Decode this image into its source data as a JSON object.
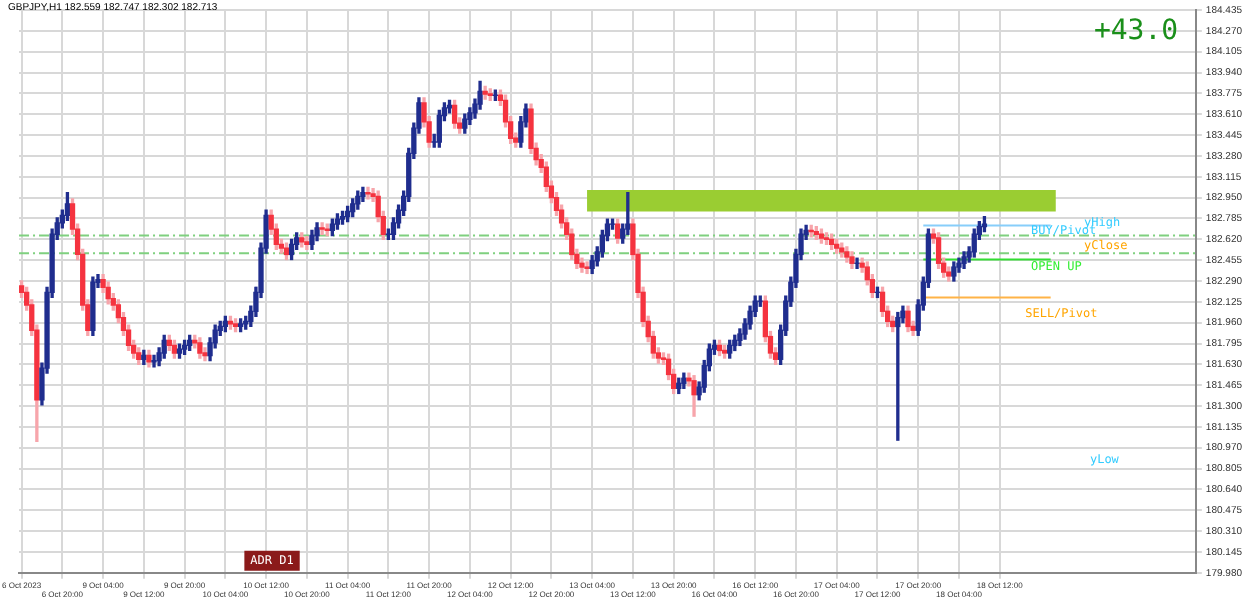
{
  "chart_data": {
    "type": "candlestick",
    "title": "GBPJPY,H1 182.559 182.747 182.302 182.713",
    "categories": [
      "6 Oct 2023",
      null,
      null,
      null,
      null,
      null,
      null,
      null,
      "6 Oct 20:00",
      null,
      null,
      null,
      null,
      null,
      null,
      null,
      "9 Oct 04:00",
      null,
      null,
      null,
      null,
      null,
      null,
      null,
      "9 Oct 12:00",
      null,
      null,
      null,
      null,
      null,
      null,
      null,
      "9 Oct 20:00",
      null,
      null,
      null,
      null,
      null,
      null,
      null,
      "10 Oct 04:00",
      null,
      null,
      null,
      null,
      null,
      null,
      null,
      "10 Oct 12:00",
      null,
      null,
      null,
      null,
      null,
      null,
      null,
      "10 Oct 20:00",
      null,
      null,
      null,
      null,
      null,
      null,
      null,
      "11 Oct 04:00",
      null,
      null,
      null,
      null,
      null,
      null,
      null,
      "11 Oct 12:00",
      null,
      null,
      null,
      null,
      null,
      null,
      null,
      "11 Oct 20:00",
      null,
      null,
      null,
      null,
      null,
      null,
      null,
      "12 Oct 04:00",
      null,
      null,
      null,
      null,
      null,
      null,
      null,
      "12 Oct 12:00",
      null,
      null,
      null,
      null,
      null,
      null,
      null,
      "12 Oct 20:00",
      null,
      null,
      null,
      null,
      null,
      null,
      null,
      "13 Oct 04:00",
      null,
      null,
      null,
      null,
      null,
      null,
      null,
      "13 Oct 12:00",
      null,
      null,
      null,
      null,
      null,
      null,
      null,
      "13 Oct 20:00",
      null,
      null,
      null,
      null,
      null,
      null,
      null,
      "16 Oct 04:00",
      null,
      null,
      null,
      null,
      null,
      null,
      null,
      "16 Oct 12:00",
      null,
      null,
      null,
      null,
      null,
      null,
      null,
      "16 Oct 20:00",
      null,
      null,
      null,
      null,
      null,
      null,
      null,
      "17 Oct 04:00",
      null,
      null,
      null,
      null,
      null,
      null,
      null,
      "17 Oct 12:00",
      null,
      null,
      null,
      null,
      null,
      null,
      null,
      "17 Oct 20:00",
      null,
      null,
      null,
      null,
      null,
      null,
      null,
      "18 Oct 04:00",
      null,
      null,
      null,
      null,
      null,
      null,
      null,
      "18 Oct 12:00",
      null,
      null,
      null,
      null,
      null,
      null,
      null,
      null,
      null,
      null,
      null,
      null,
      null,
      null,
      null,
      null,
      null,
      null,
      null,
      null,
      null,
      null,
      null,
      null,
      null,
      null,
      null,
      null,
      null,
      null,
      null,
      null,
      null,
      null,
      null,
      null,
      null,
      null
    ],
    "ohlc": [
      [
        182.25,
        182.29,
        182.16,
        182.2
      ],
      [
        182.2,
        182.24,
        182.06,
        182.1
      ],
      [
        182.1,
        182.14,
        181.86,
        181.9
      ],
      [
        181.9,
        181.94,
        181.02,
        181.35
      ],
      [
        181.35,
        181.64,
        181.31,
        181.6
      ],
      [
        181.6,
        182.24,
        181.56,
        182.2
      ],
      [
        182.2,
        182.7,
        182.16,
        182.66
      ],
      [
        182.66,
        182.79,
        182.62,
        182.75
      ],
      [
        182.75,
        182.85,
        182.71,
        182.81
      ],
      [
        182.81,
        182.99,
        182.77,
        182.9
      ],
      [
        182.9,
        182.94,
        182.66,
        182.7
      ],
      [
        182.7,
        182.74,
        182.46,
        182.5
      ],
      [
        182.5,
        182.54,
        182.06,
        182.1
      ],
      [
        182.1,
        182.14,
        181.86,
        181.9
      ],
      [
        181.9,
        182.32,
        181.86,
        182.28
      ],
      [
        182.28,
        182.34,
        182.24,
        182.3
      ],
      [
        182.3,
        182.34,
        182.2,
        182.24
      ],
      [
        182.24,
        182.28,
        182.11,
        182.15
      ],
      [
        182.15,
        182.19,
        182.06,
        182.1
      ],
      [
        182.1,
        182.14,
        181.96,
        182.0
      ],
      [
        182.0,
        182.04,
        181.86,
        181.9
      ],
      [
        181.9,
        181.94,
        181.74,
        181.78
      ],
      [
        181.78,
        181.82,
        181.68,
        181.72
      ],
      [
        181.72,
        181.76,
        181.63,
        181.67
      ],
      [
        181.67,
        181.74,
        181.63,
        181.7
      ],
      [
        181.7,
        181.74,
        181.61,
        181.65
      ],
      [
        181.65,
        181.7,
        181.61,
        181.66
      ],
      [
        181.66,
        181.76,
        181.62,
        181.72
      ],
      [
        181.72,
        181.86,
        181.68,
        181.82
      ],
      [
        181.82,
        181.86,
        181.74,
        181.78
      ],
      [
        181.78,
        181.82,
        181.68,
        181.72
      ],
      [
        181.72,
        181.79,
        181.68,
        181.75
      ],
      [
        181.75,
        181.82,
        181.71,
        181.78
      ],
      [
        181.78,
        181.86,
        181.74,
        181.82
      ],
      [
        181.82,
        181.86,
        181.76,
        181.8
      ],
      [
        181.8,
        181.84,
        181.68,
        181.72
      ],
      [
        181.72,
        181.76,
        181.66,
        181.7
      ],
      [
        181.7,
        181.84,
        181.66,
        181.8
      ],
      [
        181.8,
        181.94,
        181.76,
        181.9
      ],
      [
        181.9,
        181.97,
        181.86,
        181.93
      ],
      [
        181.93,
        182.01,
        181.89,
        181.97
      ],
      [
        181.97,
        182.01,
        181.91,
        181.95
      ],
      [
        181.95,
        181.99,
        181.89,
        181.93
      ],
      [
        181.93,
        181.99,
        181.89,
        181.95
      ],
      [
        181.95,
        182.01,
        181.91,
        181.97
      ],
      [
        181.97,
        182.09,
        181.93,
        182.05
      ],
      [
        182.05,
        182.24,
        182.01,
        182.2
      ],
      [
        182.2,
        182.59,
        182.16,
        182.55
      ],
      [
        182.55,
        182.85,
        182.51,
        182.81
      ],
      [
        182.81,
        182.85,
        182.66,
        182.7
      ],
      [
        182.7,
        182.74,
        182.54,
        182.58
      ],
      [
        182.58,
        182.62,
        182.51,
        182.55
      ],
      [
        182.55,
        182.59,
        182.46,
        182.5
      ],
      [
        182.5,
        182.62,
        182.46,
        182.58
      ],
      [
        182.58,
        182.67,
        182.54,
        182.63
      ],
      [
        182.63,
        182.67,
        182.56,
        182.6
      ],
      [
        182.6,
        182.64,
        182.54,
        182.58
      ],
      [
        182.58,
        182.69,
        182.54,
        182.65
      ],
      [
        182.65,
        182.75,
        182.61,
        182.71
      ],
      [
        182.71,
        182.75,
        182.66,
        182.7
      ],
      [
        182.7,
        182.74,
        182.65,
        182.69
      ],
      [
        182.69,
        182.78,
        182.65,
        182.74
      ],
      [
        182.74,
        182.82,
        182.7,
        182.78
      ],
      [
        182.78,
        182.84,
        182.74,
        182.8
      ],
      [
        182.8,
        182.88,
        182.76,
        182.84
      ],
      [
        182.84,
        182.94,
        182.8,
        182.9
      ],
      [
        182.9,
        183.0,
        182.86,
        182.96
      ],
      [
        182.96,
        183.03,
        182.92,
        182.99
      ],
      [
        182.99,
        183.03,
        182.94,
        182.98
      ],
      [
        182.98,
        183.02,
        182.92,
        182.96
      ],
      [
        182.96,
        183.0,
        182.76,
        182.8
      ],
      [
        182.8,
        182.84,
        182.62,
        182.66
      ],
      [
        182.66,
        182.7,
        182.62,
        182.66
      ],
      [
        182.66,
        182.79,
        182.62,
        182.75
      ],
      [
        182.75,
        182.89,
        182.71,
        182.85
      ],
      [
        182.85,
        183.0,
        182.81,
        182.96
      ],
      [
        182.96,
        183.34,
        182.92,
        183.3
      ],
      [
        183.3,
        183.54,
        183.26,
        183.5
      ],
      [
        183.5,
        183.74,
        183.46,
        183.7
      ],
      [
        183.7,
        183.74,
        183.51,
        183.55
      ],
      [
        183.55,
        183.59,
        183.35,
        183.39
      ],
      [
        183.39,
        183.45,
        183.35,
        183.39
      ],
      [
        183.39,
        183.64,
        183.35,
        183.6
      ],
      [
        183.6,
        183.7,
        183.56,
        183.66
      ],
      [
        183.66,
        183.72,
        183.62,
        183.68
      ],
      [
        183.68,
        183.72,
        183.5,
        183.54
      ],
      [
        183.54,
        183.58,
        183.46,
        183.5
      ],
      [
        183.5,
        183.61,
        183.46,
        183.57
      ],
      [
        183.57,
        183.66,
        183.53,
        183.62
      ],
      [
        183.62,
        183.73,
        183.58,
        183.69
      ],
      [
        183.69,
        183.87,
        183.65,
        183.79
      ],
      [
        183.79,
        183.83,
        183.73,
        183.77
      ],
      [
        183.77,
        183.81,
        183.72,
        183.76
      ],
      [
        183.76,
        183.8,
        183.72,
        183.76
      ],
      [
        183.76,
        183.8,
        183.68,
        183.72
      ],
      [
        183.72,
        183.76,
        183.51,
        183.55
      ],
      [
        183.55,
        183.59,
        183.38,
        183.42
      ],
      [
        183.42,
        183.46,
        183.35,
        183.39
      ],
      [
        183.39,
        183.59,
        183.35,
        183.55
      ],
      [
        183.55,
        183.69,
        183.51,
        183.65
      ],
      [
        183.65,
        183.69,
        183.3,
        183.34
      ],
      [
        183.34,
        183.38,
        183.21,
        183.25
      ],
      [
        183.25,
        183.29,
        183.15,
        183.19
      ],
      [
        183.19,
        183.23,
        183.0,
        183.04
      ],
      [
        183.04,
        183.08,
        182.91,
        182.95
      ],
      [
        182.95,
        182.99,
        182.81,
        182.85
      ],
      [
        182.85,
        182.89,
        182.71,
        182.75
      ],
      [
        182.75,
        182.79,
        182.62,
        182.66
      ],
      [
        182.66,
        182.7,
        182.46,
        182.5
      ],
      [
        182.5,
        182.54,
        182.39,
        182.43
      ],
      [
        182.43,
        182.47,
        182.36,
        182.4
      ],
      [
        182.4,
        182.44,
        182.35,
        182.39
      ],
      [
        182.39,
        182.49,
        182.35,
        182.45
      ],
      [
        182.45,
        182.56,
        182.41,
        182.52
      ],
      [
        182.52,
        182.69,
        182.48,
        182.65
      ],
      [
        182.65,
        182.78,
        182.61,
        182.74
      ],
      [
        182.74,
        182.78,
        182.7,
        182.74
      ],
      [
        182.74,
        182.78,
        182.59,
        182.63
      ],
      [
        182.63,
        182.74,
        182.59,
        182.7
      ],
      [
        182.7,
        182.99,
        182.66,
        182.74
      ],
      [
        182.74,
        182.78,
        182.46,
        182.5
      ],
      [
        182.5,
        182.54,
        182.16,
        182.2
      ],
      [
        182.2,
        182.24,
        181.93,
        181.97
      ],
      [
        181.97,
        182.01,
        181.81,
        181.85
      ],
      [
        181.85,
        181.89,
        181.68,
        181.72
      ],
      [
        181.72,
        181.76,
        181.64,
        181.68
      ],
      [
        181.68,
        181.72,
        181.63,
        181.67
      ],
      [
        181.67,
        181.71,
        181.51,
        181.55
      ],
      [
        181.55,
        181.59,
        181.4,
        181.44
      ],
      [
        181.44,
        181.52,
        181.4,
        181.48
      ],
      [
        181.48,
        181.56,
        181.44,
        181.52
      ],
      [
        181.52,
        181.56,
        181.46,
        181.5
      ],
      [
        181.5,
        181.54,
        181.22,
        181.39
      ],
      [
        181.39,
        181.49,
        181.35,
        181.45
      ],
      [
        181.45,
        181.66,
        181.41,
        181.62
      ],
      [
        181.62,
        181.79,
        181.58,
        181.75
      ],
      [
        181.75,
        181.82,
        181.71,
        181.78
      ],
      [
        181.78,
        181.82,
        181.7,
        181.74
      ],
      [
        181.74,
        181.78,
        181.68,
        181.72
      ],
      [
        181.72,
        181.82,
        181.68,
        181.78
      ],
      [
        181.78,
        181.86,
        181.74,
        181.82
      ],
      [
        181.82,
        181.91,
        181.78,
        181.87
      ],
      [
        181.87,
        181.99,
        181.83,
        181.95
      ],
      [
        181.95,
        182.09,
        181.91,
        182.05
      ],
      [
        182.05,
        182.17,
        182.01,
        182.13
      ],
      [
        182.13,
        182.17,
        182.09,
        182.13
      ],
      [
        182.13,
        182.17,
        181.81,
        181.85
      ],
      [
        181.85,
        181.89,
        181.68,
        181.72
      ],
      [
        181.72,
        181.76,
        181.63,
        181.67
      ],
      [
        181.67,
        181.94,
        181.63,
        181.9
      ],
      [
        181.9,
        182.17,
        181.86,
        182.13
      ],
      [
        182.13,
        182.32,
        182.09,
        182.28
      ],
      [
        182.28,
        182.54,
        182.24,
        182.5
      ],
      [
        182.5,
        182.7,
        182.46,
        182.66
      ],
      [
        182.66,
        182.73,
        182.62,
        182.69
      ],
      [
        182.69,
        182.73,
        182.64,
        182.68
      ],
      [
        182.68,
        182.72,
        182.62,
        182.66
      ],
      [
        182.66,
        182.7,
        182.59,
        182.63
      ],
      [
        182.63,
        182.67,
        182.58,
        182.62
      ],
      [
        182.62,
        182.66,
        182.54,
        182.58
      ],
      [
        182.58,
        182.62,
        182.51,
        182.55
      ],
      [
        182.55,
        182.59,
        182.48,
        182.52
      ],
      [
        182.52,
        182.56,
        182.44,
        182.48
      ],
      [
        182.48,
        182.52,
        182.39,
        182.43
      ],
      [
        182.43,
        182.47,
        182.39,
        182.43
      ],
      [
        182.43,
        182.47,
        182.36,
        182.4
      ],
      [
        182.4,
        182.44,
        182.26,
        182.3
      ],
      [
        182.3,
        182.34,
        182.16,
        182.2
      ],
      [
        182.2,
        182.24,
        182.16,
        182.2
      ],
      [
        182.2,
        182.24,
        182.01,
        182.05
      ],
      [
        182.05,
        182.09,
        181.93,
        181.97
      ],
      [
        181.97,
        182.01,
        181.89,
        181.93
      ],
      [
        181.93,
        182.04,
        181.03,
        182.0
      ],
      [
        182.0,
        182.09,
        181.96,
        182.05
      ],
      [
        182.05,
        182.09,
        181.89,
        181.93
      ],
      [
        181.93,
        181.97,
        181.86,
        181.9
      ],
      [
        181.9,
        182.14,
        181.86,
        182.1
      ],
      [
        182.1,
        182.32,
        182.06,
        182.28
      ],
      [
        182.28,
        182.7,
        182.24,
        182.66
      ],
      [
        182.66,
        182.7,
        182.59,
        182.63
      ],
      [
        182.63,
        182.67,
        182.39,
        182.43
      ],
      [
        182.43,
        182.47,
        182.32,
        182.36
      ],
      [
        182.36,
        182.4,
        182.29,
        182.33
      ],
      [
        182.33,
        182.44,
        182.29,
        182.4
      ],
      [
        182.4,
        182.47,
        182.36,
        182.43
      ],
      [
        182.43,
        182.52,
        182.39,
        182.48
      ],
      [
        182.48,
        182.56,
        182.44,
        182.52
      ],
      [
        182.52,
        182.7,
        182.48,
        182.66
      ],
      [
        182.66,
        182.76,
        182.62,
        182.72
      ],
      [
        182.72,
        182.8,
        182.68,
        182.74
      ],
      null,
      null,
      null,
      null,
      null,
      null,
      null,
      null,
      null,
      null,
      null,
      null,
      null,
      null,
      null,
      null,
      null,
      null,
      null,
      null,
      null,
      null,
      null,
      null,
      null,
      null,
      null,
      null,
      null,
      null,
      null,
      null,
      null,
      null,
      null,
      null,
      null,
      null,
      null,
      null,
      null
    ],
    "ylim": [
      179.98,
      184.435
    ],
    "yticks": [
      {
        "value": 184.435,
        "label": "184.435"
      },
      {
        "value": 184.27,
        "label": "184.270"
      },
      {
        "value": 184.105,
        "label": "184.105"
      },
      {
        "value": 183.94,
        "label": "183.940"
      },
      {
        "value": 183.775,
        "label": "183.775"
      },
      {
        "value": 183.61,
        "label": "183.610"
      },
      {
        "value": 183.445,
        "label": "183.445"
      },
      {
        "value": 183.28,
        "label": "183.280"
      },
      {
        "value": 183.115,
        "label": "183.115"
      },
      {
        "value": 182.95,
        "label": "182.950"
      },
      {
        "value": 182.785,
        "label": "182.785"
      },
      {
        "value": 182.62,
        "label": "182.620"
      },
      {
        "value": 182.455,
        "label": "182.455"
      },
      {
        "value": 182.29,
        "label": "182.290"
      },
      {
        "value": 182.125,
        "label": "182.125"
      },
      {
        "value": 181.96,
        "label": "181.960"
      },
      {
        "value": 181.795,
        "label": "181.795"
      },
      {
        "value": 181.63,
        "label": "181.630"
      },
      {
        "value": 181.465,
        "label": "181.465"
      },
      {
        "value": 181.3,
        "label": "181.300"
      },
      {
        "value": 181.135,
        "label": "181.135"
      },
      {
        "value": 180.97,
        "label": "180.970"
      },
      {
        "value": 180.805,
        "label": "180.805"
      },
      {
        "value": 180.64,
        "label": "180.640"
      },
      {
        "value": 180.475,
        "label": "180.475"
      },
      {
        "value": 180.31,
        "label": "180.310"
      },
      {
        "value": 180.145,
        "label": "180.145"
      },
      {
        "value": 179.98,
        "label": "179.980"
      }
    ],
    "grid": true,
    "bands": [
      {
        "axis": "y",
        "from": 182.84,
        "to": 183.01,
        "color": "#9acd32"
      }
    ],
    "ref_lines": [
      {
        "axis": "y",
        "value": 182.65,
        "color": "#7fd07f",
        "line_style": "dashed"
      },
      {
        "axis": "y",
        "value": 182.51,
        "color": "#7fd07f",
        "line_style": "dashed"
      },
      {
        "axis": "y",
        "value": 182.73,
        "color": "#87cefa",
        "line_style": "solid"
      },
      {
        "axis": "y",
        "value": 182.46,
        "color": "#33dd33",
        "line_style": "solid"
      },
      {
        "axis": "y",
        "value": 182.16,
        "color": "#ffb347",
        "line_style": "solid"
      }
    ],
    "annotations": [
      "+43.0",
      {
        "text": "BUY/Pivot",
        "y": 182.69
      },
      {
        "text": "yHigh",
        "y": 182.72
      },
      {
        "text": "yClose",
        "y": 182.57
      },
      {
        "text": "OPEN UP",
        "y": 182.4
      },
      "SELL/Pivot",
      "yLow",
      "ADR D1"
    ]
  }
}
